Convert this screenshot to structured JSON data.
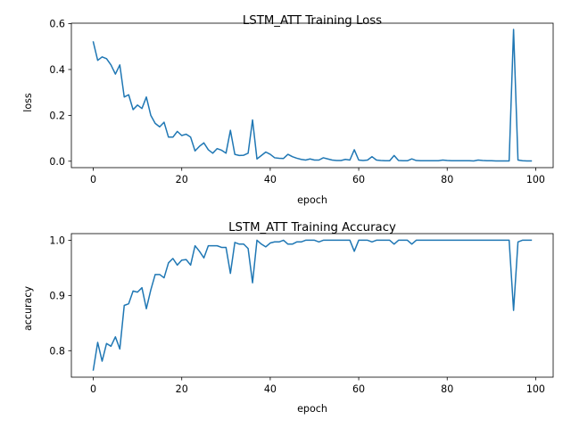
{
  "chart_data": [
    {
      "type": "line",
      "title": "LSTM_ATT Training Loss",
      "xlabel": "epoch",
      "ylabel": "loss",
      "xlim": [
        -4.95,
        103.95
      ],
      "ylim": [
        -0.028,
        0.602
      ],
      "xticks": [
        0,
        20,
        40,
        60,
        80,
        100
      ],
      "yticks": [
        0.0,
        0.2,
        0.4,
        0.6
      ],
      "xtick_labels": [
        "0",
        "20",
        "40",
        "60",
        "80",
        "100"
      ],
      "ytick_labels": [
        "0.0",
        "0.2",
        "0.4",
        "0.6"
      ],
      "grid": false,
      "color": "#1f77b4",
      "x": [
        0,
        1,
        2,
        3,
        4,
        5,
        6,
        7,
        8,
        9,
        10,
        11,
        12,
        13,
        14,
        15,
        16,
        17,
        18,
        19,
        20,
        21,
        22,
        23,
        24,
        25,
        26,
        27,
        28,
        29,
        30,
        31,
        32,
        33,
        34,
        35,
        36,
        37,
        38,
        39,
        40,
        41,
        42,
        43,
        44,
        45,
        46,
        47,
        48,
        49,
        50,
        51,
        52,
        53,
        54,
        55,
        56,
        57,
        58,
        59,
        60,
        61,
        62,
        63,
        64,
        65,
        66,
        67,
        68,
        69,
        70,
        71,
        72,
        73,
        74,
        75,
        76,
        77,
        78,
        79,
        80,
        81,
        82,
        83,
        84,
        85,
        86,
        87,
        88,
        89,
        90,
        91,
        92,
        93,
        94,
        95,
        96,
        97,
        98,
        99
      ],
      "values": [
        0.52,
        0.44,
        0.455,
        0.447,
        0.42,
        0.38,
        0.42,
        0.28,
        0.29,
        0.225,
        0.245,
        0.23,
        0.28,
        0.2,
        0.165,
        0.15,
        0.17,
        0.105,
        0.105,
        0.13,
        0.112,
        0.118,
        0.105,
        0.045,
        0.065,
        0.08,
        0.05,
        0.035,
        0.055,
        0.048,
        0.035,
        0.135,
        0.03,
        0.025,
        0.026,
        0.035,
        0.18,
        0.01,
        0.025,
        0.04,
        0.03,
        0.015,
        0.013,
        0.012,
        0.03,
        0.02,
        0.013,
        0.008,
        0.005,
        0.01,
        0.005,
        0.005,
        0.015,
        0.01,
        0.005,
        0.003,
        0.003,
        0.008,
        0.005,
        0.05,
        0.005,
        0.003,
        0.005,
        0.02,
        0.005,
        0.003,
        0.002,
        0.002,
        0.025,
        0.003,
        0.002,
        0.002,
        0.01,
        0.003,
        0.002,
        0.002,
        0.002,
        0.002,
        0.002,
        0.005,
        0.003,
        0.002,
        0.002,
        0.002,
        0.002,
        0.002,
        0.001,
        0.005,
        0.003,
        0.002,
        0.002,
        0.001,
        0.001,
        0.001,
        0.001,
        0.575,
        0.005,
        0.002,
        0.001,
        0.001
      ]
    },
    {
      "type": "line",
      "title": "LSTM_ATT Training Accuracy",
      "xlabel": "epoch",
      "ylabel": "accuracy",
      "xlim": [
        -4.95,
        103.95
      ],
      "ylim": [
        0.752,
        1.012
      ],
      "xticks": [
        0,
        20,
        40,
        60,
        80,
        100
      ],
      "yticks": [
        0.8,
        0.9,
        1.0
      ],
      "xtick_labels": [
        "0",
        "20",
        "40",
        "60",
        "80",
        "100"
      ],
      "ytick_labels": [
        "0.8",
        "0.9",
        "1.0"
      ],
      "grid": false,
      "color": "#1f77b4",
      "x": [
        0,
        1,
        2,
        3,
        4,
        5,
        6,
        7,
        8,
        9,
        10,
        11,
        12,
        13,
        14,
        15,
        16,
        17,
        18,
        19,
        20,
        21,
        22,
        23,
        24,
        25,
        26,
        27,
        28,
        29,
        30,
        31,
        32,
        33,
        34,
        35,
        36,
        37,
        38,
        39,
        40,
        41,
        42,
        43,
        44,
        45,
        46,
        47,
        48,
        49,
        50,
        51,
        52,
        53,
        54,
        55,
        56,
        57,
        58,
        59,
        60,
        61,
        62,
        63,
        64,
        65,
        66,
        67,
        68,
        69,
        70,
        71,
        72,
        73,
        74,
        75,
        76,
        77,
        78,
        79,
        80,
        81,
        82,
        83,
        84,
        85,
        86,
        87,
        88,
        89,
        90,
        91,
        92,
        93,
        94,
        95,
        96,
        97,
        98,
        99
      ],
      "values": [
        0.765,
        0.815,
        0.781,
        0.813,
        0.808,
        0.825,
        0.803,
        0.882,
        0.885,
        0.908,
        0.906,
        0.914,
        0.876,
        0.91,
        0.938,
        0.938,
        0.932,
        0.959,
        0.967,
        0.955,
        0.964,
        0.965,
        0.955,
        0.99,
        0.98,
        0.968,
        0.99,
        0.99,
        0.99,
        0.987,
        0.987,
        0.94,
        0.996,
        0.993,
        0.993,
        0.985,
        0.923,
        1.0,
        0.993,
        0.988,
        0.995,
        0.997,
        0.997,
        1.0,
        0.993,
        0.993,
        0.997,
        0.997,
        1.0,
        1.0,
        1.0,
        0.997,
        1.0,
        1.0,
        1.0,
        1.0,
        1.0,
        1.0,
        1.0,
        0.98,
        1.0,
        1.0,
        1.0,
        0.997,
        1.0,
        1.0,
        1.0,
        1.0,
        0.993,
        1.0,
        1.0,
        1.0,
        0.993,
        1.0,
        1.0,
        1.0,
        1.0,
        1.0,
        1.0,
        1.0,
        1.0,
        1.0,
        1.0,
        1.0,
        1.0,
        1.0,
        1.0,
        1.0,
        1.0,
        1.0,
        1.0,
        1.0,
        1.0,
        1.0,
        1.0,
        0.873,
        0.997,
        1.0,
        1.0,
        1.0
      ]
    }
  ]
}
